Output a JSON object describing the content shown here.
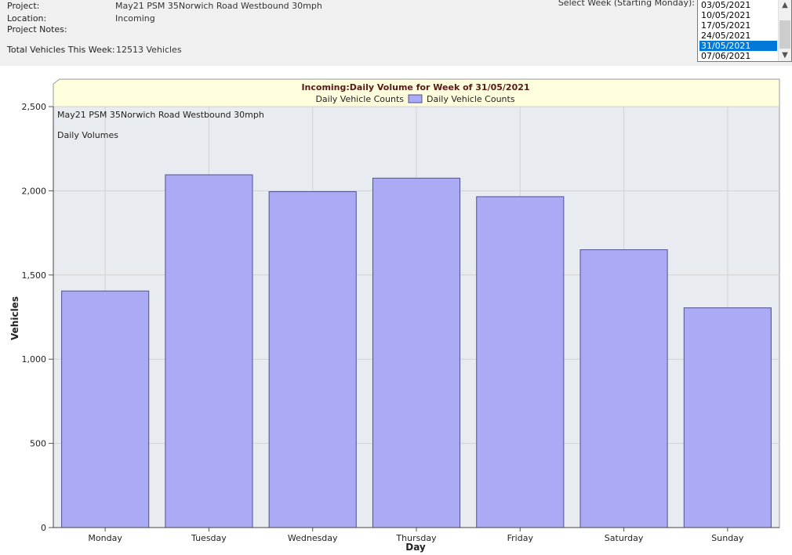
{
  "header": {
    "project_label": "Project:",
    "project_value": "May21 PSM 35Norwich Road Westbound 30mph",
    "location_label": "Location:",
    "location_value": "Incoming",
    "notes_label": "Project Notes:",
    "total_label": "Total Vehicles This Week:",
    "total_value": "12513 Vehicles",
    "week_select_label": "Select Week (Starting Monday):",
    "weeks": [
      "03/05/2021",
      "10/05/2021",
      "17/05/2021",
      "24/05/2021",
      "31/05/2021",
      "07/06/2021"
    ],
    "selected_week": "31/05/2021"
  },
  "chart_data": {
    "type": "bar",
    "title": "Incoming:Daily Volume for Week of 31/05/2021",
    "legend_text": "Daily Vehicle Counts",
    "legend_entry": "Daily Vehicle Counts",
    "legend_placement": "top-center",
    "annotation_1": "May21 PSM 35Norwich Road Westbound 30mph",
    "annotation_2": "Daily Volumes",
    "categories": [
      "Monday",
      "Tuesday",
      "Wednesday",
      "Thursday",
      "Friday",
      "Saturday",
      "Sunday"
    ],
    "values": [
      1405,
      2095,
      1995,
      2075,
      1965,
      1650,
      1305
    ],
    "xlabel": "Day",
    "ylabel": "Vehicles",
    "ylim": [
      0,
      2500
    ],
    "yticks": [
      0,
      500,
      1000,
      1500,
      2000,
      2500
    ],
    "ytick_labels": [
      "0",
      "500",
      "1,000",
      "1,500",
      "2,000",
      "2,500"
    ],
    "grid": true,
    "colors": {
      "bar_fill": "#aaaaf5",
      "bar_stroke": "#505094",
      "title_band": "#ffffdd",
      "title_text": "#5a1818"
    }
  }
}
